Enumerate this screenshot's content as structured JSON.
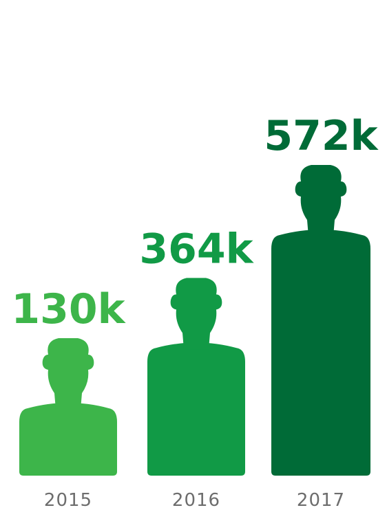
{
  "chart_data": {
    "type": "bar",
    "categories": [
      "2015",
      "2016",
      "2017"
    ],
    "values": [
      130,
      364,
      572
    ],
    "value_labels": [
      "130k",
      "364k",
      "572k"
    ],
    "unit_suffix": "k",
    "title": "",
    "xlabel": "",
    "ylabel": "",
    "ylim": [
      0,
      572
    ],
    "grid": false,
    "legend": "none",
    "mark_shape": "person-silhouette",
    "colors": [
      "#3db54a",
      "#119a46",
      "#006b37"
    ]
  }
}
